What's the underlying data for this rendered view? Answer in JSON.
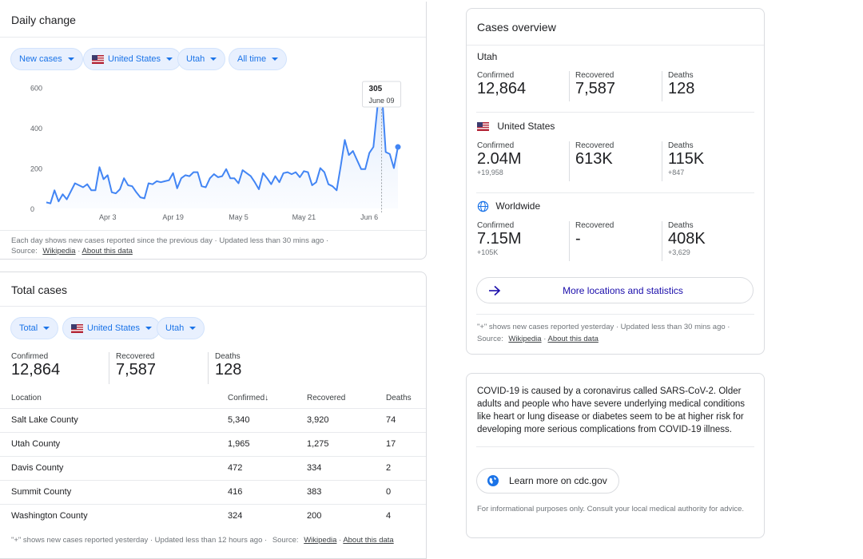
{
  "daily": {
    "title": "Daily change",
    "chips": [
      {
        "label": "New cases"
      },
      {
        "label": "United States",
        "flag": true
      },
      {
        "label": "Utah"
      },
      {
        "label": "All time"
      }
    ],
    "tooltip": {
      "value": "305",
      "date": "June 09"
    },
    "footer": "Each day shows new cases reported since the previous day · Updated less than 30 mins ago ·",
    "source_label": "Source:",
    "source_link": "Wikipedia",
    "about_link": "About this data"
  },
  "chart_data": {
    "type": "area",
    "title": "",
    "xlabel": "",
    "ylabel": "",
    "ylim": [
      0,
      650
    ],
    "yticks": [
      "0",
      "200",
      "400",
      "600"
    ],
    "xticks": [
      "Apr 3",
      "Apr 19",
      "May 5",
      "May 21",
      "Jun 6"
    ],
    "grid": false,
    "series": [
      {
        "values": [
          30,
          25,
          90,
          35,
          70,
          45,
          85,
          125,
          115,
          105,
          120,
          90,
          90,
          205,
          145,
          165,
          80,
          75,
          95,
          150,
          115,
          110,
          80,
          55,
          50,
          125,
          120,
          135,
          130,
          135,
          140,
          175,
          100,
          150,
          165,
          160,
          180,
          180,
          110,
          105,
          150,
          170,
          155,
          160,
          195,
          150,
          150,
          125,
          190,
          175,
          160,
          130,
          95,
          175,
          150,
          120,
          160,
          130,
          175,
          180,
          170,
          180,
          155,
          185,
          180,
          115,
          130,
          200,
          180,
          120,
          110,
          90,
          210,
          340,
          265,
          285,
          240,
          195,
          195,
          275,
          305,
          505,
          605,
          280,
          270,
          200,
          305
        ],
        "color": "#4285f4"
      }
    ]
  },
  "total": {
    "title": "Total cases",
    "chips": [
      {
        "label": "Total"
      },
      {
        "label": "United States",
        "flag": true
      },
      {
        "label": "Utah"
      }
    ],
    "stats": [
      {
        "label": "Confirmed",
        "value": "12,864"
      },
      {
        "label": "Recovered",
        "value": "7,587"
      },
      {
        "label": "Deaths",
        "value": "128"
      }
    ],
    "headers": [
      "Location",
      "Confirmed",
      "Recovered",
      "Deaths"
    ],
    "sort_arrow": "↓",
    "rows": [
      [
        "Salt Lake County",
        "5,340",
        "3,920",
        "74"
      ],
      [
        "Utah County",
        "1,965",
        "1,275",
        "17"
      ],
      [
        "Davis County",
        "472",
        "334",
        "2"
      ],
      [
        "Summit County",
        "416",
        "383",
        "0"
      ],
      [
        "Washington County",
        "324",
        "200",
        "4"
      ]
    ],
    "footer": "\"+\" shows new cases reported yesterday · Updated less than 12 hours ago ·",
    "source_label": "Source:",
    "source_link": "Wikipedia",
    "about_link": "About this data"
  },
  "overview": {
    "title": "Cases overview",
    "utah": {
      "name": "Utah",
      "stats": [
        {
          "label": "Confirmed",
          "value": "12,864"
        },
        {
          "label": "Recovered",
          "value": "7,587"
        },
        {
          "label": "Deaths",
          "value": "128"
        }
      ]
    },
    "us": {
      "name": "United States",
      "stats": [
        {
          "label": "Confirmed",
          "value": "2.04M",
          "sub": "+19,958"
        },
        {
          "label": "Recovered",
          "value": "613K",
          "sub": ""
        },
        {
          "label": "Deaths",
          "value": "115K",
          "sub": "+847"
        }
      ]
    },
    "world": {
      "name": "Worldwide",
      "stats": [
        {
          "label": "Confirmed",
          "value": "7.15M",
          "sub": "+105K"
        },
        {
          "label": "Recovered",
          "value": "-",
          "sub": ""
        },
        {
          "label": "Deaths",
          "value": "408K",
          "sub": "+3,629"
        }
      ]
    },
    "more_button": "More locations and statistics",
    "footer": "\"+\" shows new cases reported yesterday · Updated less than 30 mins ago ·",
    "source_label": "Source:",
    "source_link": "Wikipedia",
    "about_link": "About this data"
  },
  "info": {
    "text": "COVID-19 is caused by a coronavirus called SARS-CoV-2. Older adults and people who have severe underlying medical conditions like heart or lung disease or diabetes seem to be at higher risk for developing more serious complications from COVID-19 illness.",
    "button": "Learn more on cdc.gov",
    "disclaimer": "For informational purposes only. Consult your local medical authority for advice."
  },
  "colors": {
    "accent": "#1a73e8",
    "line": "#4285f4"
  }
}
